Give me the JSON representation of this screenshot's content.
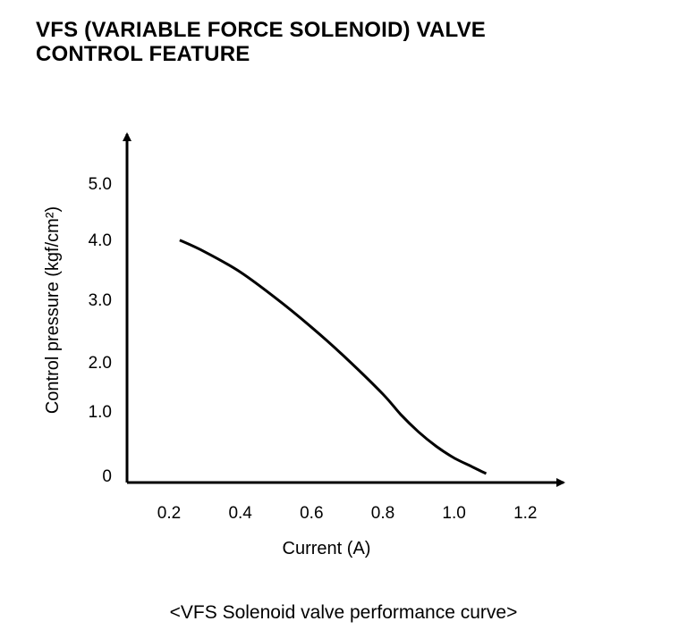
{
  "title_lines": [
    "VFS (VARIABLE FORCE SOLENOID) VALVE",
    "CONTROL FEATURE"
  ],
  "caption": "<VFS Solenoid valve performance curve>",
  "chart_data": {
    "type": "line",
    "title": "VFS (VARIABLE FORCE SOLENOID) VALVE CONTROL FEATURE",
    "xlabel": "Current  (A)",
    "ylabel": "Control pressure  (kgf/cm²)",
    "x_ticks": [
      "0.2",
      "0.4",
      "0.6",
      "0.8",
      "1.0",
      "1.2"
    ],
    "y_ticks": [
      "0",
      "1.0",
      "2.0",
      "3.0",
      "4.0",
      "5.0"
    ],
    "grid": false,
    "series": [
      {
        "x": [
          0.23,
          0.3,
          0.4,
          0.5,
          0.6,
          0.7,
          0.8,
          0.85,
          0.9,
          0.95,
          1.0,
          1.05,
          1.09
        ],
        "y": [
          4.05,
          3.85,
          3.5,
          3.05,
          2.55,
          2.0,
          1.4,
          1.05,
          0.75,
          0.5,
          0.3,
          0.15,
          0.03
        ]
      }
    ]
  }
}
